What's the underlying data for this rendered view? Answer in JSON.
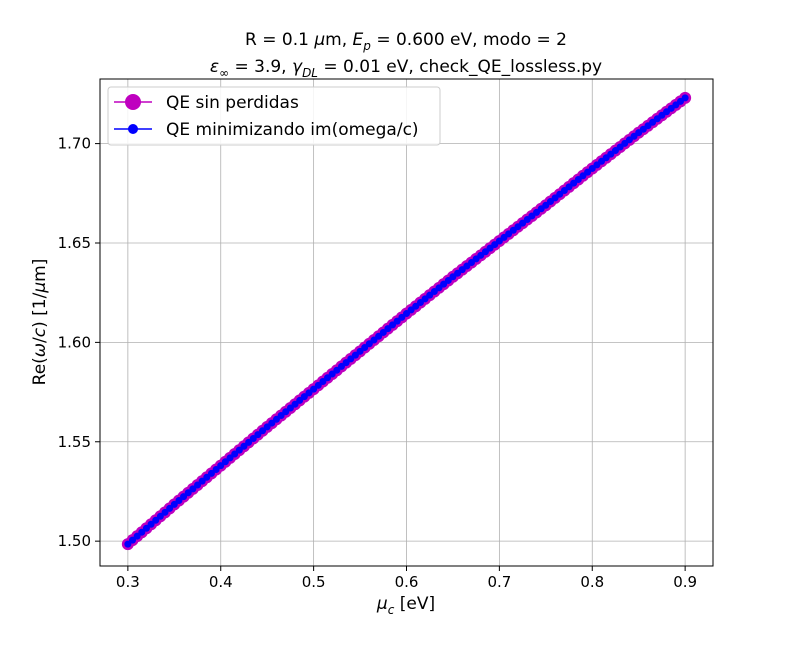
{
  "chart_data": {
    "type": "line",
    "title_line1": "R = 0.1 μm, E_p = 0.600 eV, modo = 2",
    "title_line2": "ε_∞ = 3.9, γ_DL = 0.01 eV, check_QE_lossless.py",
    "xlabel": "μ_c [eV]",
    "ylabel": "Re(ω/c) [1/μm]",
    "xlim": [
      0.27,
      0.93
    ],
    "ylim": [
      1.4875,
      1.7325
    ],
    "xticks": [
      0.3,
      0.4,
      0.5,
      0.6,
      0.7,
      0.8,
      0.9
    ],
    "xtick_labels": [
      "0.3",
      "0.4",
      "0.5",
      "0.6",
      "0.7",
      "0.8",
      "0.9"
    ],
    "yticks": [
      1.5,
      1.55,
      1.6,
      1.65,
      1.7
    ],
    "ytick_labels": [
      "1.50",
      "1.55",
      "1.60",
      "1.65",
      "1.70"
    ],
    "grid": true,
    "legend_position": "upper-left",
    "series": [
      {
        "name": "QE sin perdidas",
        "color": "#bf00bf",
        "marker": "circle-large",
        "x": [
          0.3,
          0.35,
          0.4,
          0.45,
          0.5,
          0.55,
          0.6,
          0.65,
          0.7,
          0.75,
          0.8,
          0.85,
          0.9
        ],
        "y": [
          1.4985,
          1.5185,
          1.538,
          1.5575,
          1.5765,
          1.5955,
          1.6145,
          1.633,
          1.651,
          1.669,
          1.6875,
          1.7055,
          1.723
        ]
      },
      {
        "name": "QE minimizando im(omega/c)",
        "color": "#0000ff",
        "marker": "circle-small",
        "x": [
          0.3,
          0.35,
          0.4,
          0.45,
          0.5,
          0.55,
          0.6,
          0.65,
          0.7,
          0.75,
          0.8,
          0.85,
          0.9
        ],
        "y": [
          1.4985,
          1.5185,
          1.538,
          1.5575,
          1.5765,
          1.5955,
          1.6145,
          1.633,
          1.651,
          1.669,
          1.6875,
          1.7055,
          1.723
        ]
      }
    ]
  }
}
